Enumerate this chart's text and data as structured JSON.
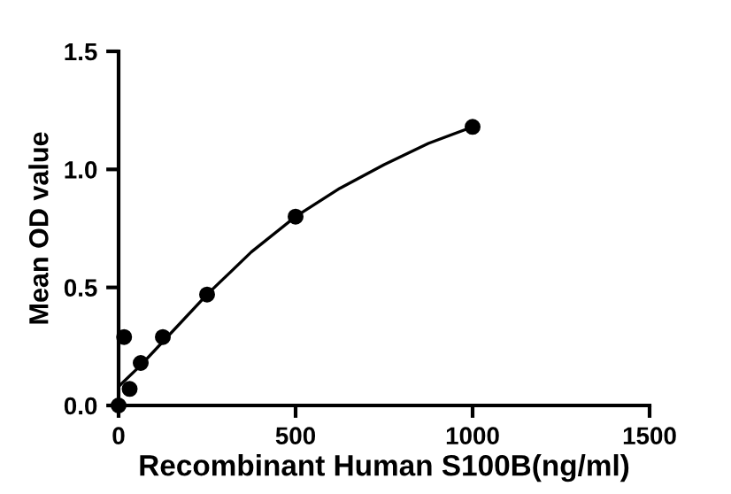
{
  "chart_data": {
    "type": "scatter",
    "xlabel": "Recombinant Human S100B(ng/ml)",
    "ylabel": "Mean OD value",
    "xlim": [
      0,
      1500
    ],
    "xticks": [
      0,
      500,
      1000,
      1500
    ],
    "ylim": [
      0,
      1.5
    ],
    "yticks": [
      {
        "value": 0,
        "label": "0.0"
      },
      0.5,
      {
        "value": 1,
        "label": "1.0"
      },
      1.5
    ],
    "grid": false,
    "legend": false,
    "series": [
      {
        "type": "scatter",
        "color": "#000000",
        "marker": "circle",
        "x": [
          0,
          15.6,
          31.25,
          62.5,
          125,
          250,
          500,
          1000
        ],
        "values": [
          0,
          0.29,
          0.07,
          0.18,
          0.29,
          0.47,
          0.8,
          1.18
        ]
      },
      {
        "type": "line",
        "color": "#000000",
        "line_style": "solid",
        "x": [
          0,
          62.5,
          125,
          250,
          375,
          500,
          625,
          750,
          875,
          1000
        ],
        "values": [
          0.08,
          0.17,
          0.27,
          0.47,
          0.65,
          0.8,
          0.92,
          1.02,
          1.11,
          1.18
        ]
      }
    ]
  }
}
